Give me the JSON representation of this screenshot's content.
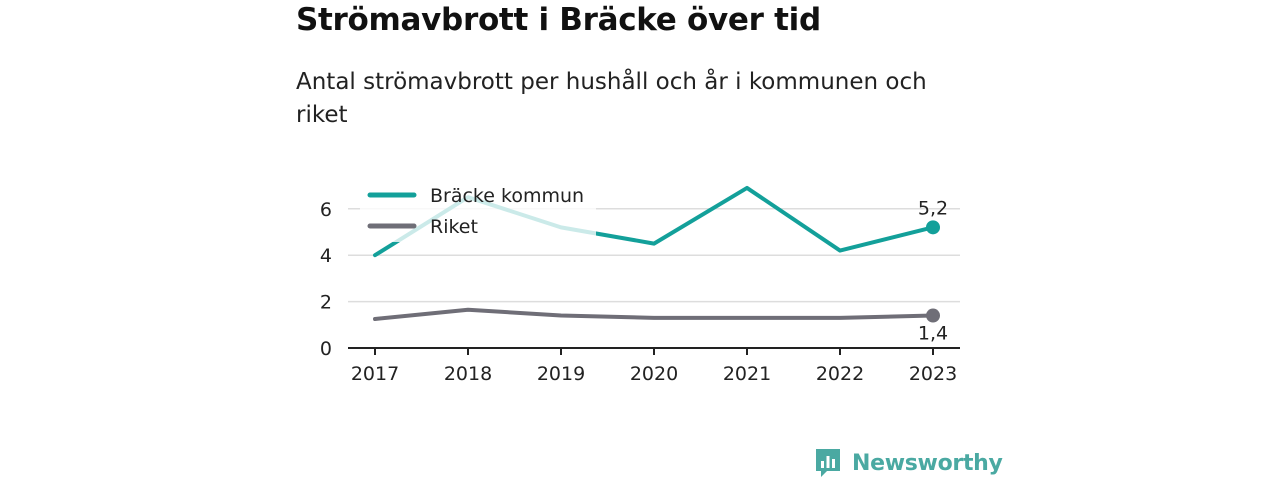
{
  "title": "Strömavbrott i Bräcke över tid",
  "subtitle": "Antal strömavbrott per hushåll och år i kommunen och riket",
  "brand": {
    "name": "Newsworthy",
    "logo_icon": "newsworthy-chart-logo-icon"
  },
  "chart_data": {
    "type": "line",
    "title": "Strömavbrott i Bräcke över tid",
    "subtitle": "Antal strömavbrott per hushåll och år i kommunen och riket",
    "xlabel": "",
    "ylabel": "",
    "categories": [
      "2017",
      "2018",
      "2019",
      "2020",
      "2021",
      "2022",
      "2023"
    ],
    "ylim": [
      0,
      7
    ],
    "yticks": [
      0,
      2,
      4,
      6
    ],
    "grid": true,
    "legend_position": "top-left",
    "series": [
      {
        "name": "Bräcke kommun",
        "color": "#13a09a",
        "values": [
          4.0,
          6.5,
          5.2,
          4.5,
          6.9,
          4.2,
          5.2
        ],
        "end_label": "5,2"
      },
      {
        "name": "Riket",
        "color": "#6f6e77",
        "values": [
          1.25,
          1.65,
          1.4,
          1.3,
          1.3,
          1.3,
          1.4
        ],
        "end_label": "1,4"
      }
    ]
  }
}
